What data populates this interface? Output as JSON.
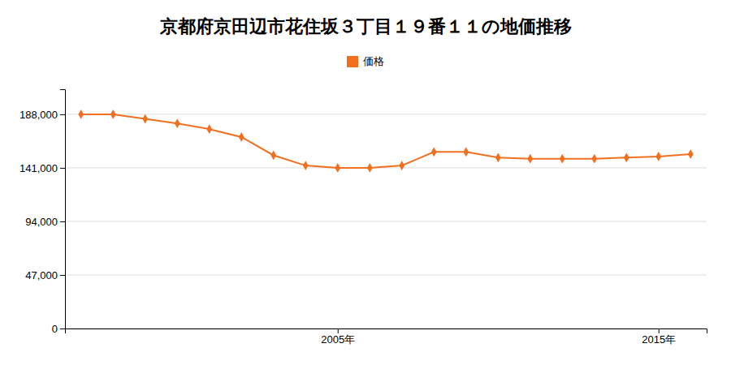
{
  "chart_data": {
    "type": "line",
    "title": "京都府京田辺市花住坂３丁目１９番１１の地価推移",
    "x": [
      1997,
      1998,
      1999,
      2000,
      2001,
      2002,
      2003,
      2004,
      2005,
      2006,
      2007,
      2008,
      2009,
      2010,
      2011,
      2012,
      2013,
      2014,
      2015,
      2016
    ],
    "series": [
      {
        "name": "価格",
        "color": "#f07020",
        "marker": "diamond",
        "line_style": "solid",
        "values": [
          188000,
          188000,
          184000,
          180000,
          175000,
          168000,
          152000,
          143000,
          141000,
          141000,
          143000,
          155000,
          155000,
          150000,
          149000,
          149000,
          149000,
          150000,
          151000,
          153000
        ]
      }
    ],
    "xlim": [
      1996.5,
      2016.5
    ],
    "xticks": [
      {
        "value": 2005,
        "label": "2005年"
      },
      {
        "value": 2015,
        "label": "2015年"
      }
    ],
    "ylim": [
      0,
      210000
    ],
    "yticks": [
      0,
      {
        "value": 47000,
        "label": "47,000"
      },
      {
        "value": 94000,
        "label": "94,000"
      },
      {
        "value": 141000,
        "label": "141,000"
      },
      {
        "value": 188000,
        "label": "188,000"
      }
    ],
    "grid": true,
    "legend": "top"
  }
}
